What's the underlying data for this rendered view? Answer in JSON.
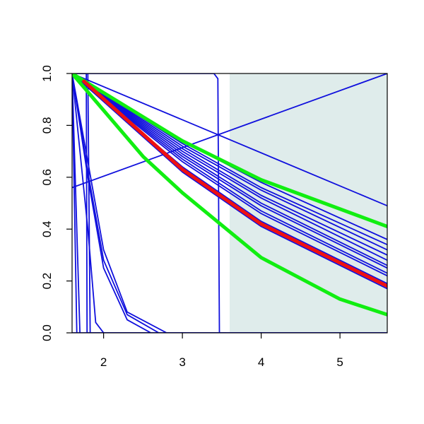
{
  "chart_data": {
    "type": "line",
    "title": "",
    "xlabel": "",
    "ylabel": "",
    "xlim": [
      1.6,
      5.6
    ],
    "ylim": [
      0.0,
      1.0
    ],
    "x_ticks": [
      2,
      3,
      4,
      5
    ],
    "x_tick_labels": [
      "2",
      "3",
      "4",
      "5"
    ],
    "y_ticks": [
      0.0,
      0.2,
      0.4,
      0.6,
      0.8,
      1.0
    ],
    "y_tick_labels": [
      "0.0",
      "0.2",
      "0.4",
      "0.6",
      "0.8",
      "1.0"
    ],
    "grid": false,
    "legend": "none",
    "shaded_region": {
      "x_from": 3.6,
      "x_to": 5.6,
      "color": "#dfeceb"
    },
    "colors": {
      "blue": "#1010dd",
      "green": "#11ee11",
      "red": "#ee1111"
    },
    "series": [
      {
        "color": "blue",
        "width": "thin",
        "points": [
          [
            1.6,
            0.56
          ],
          [
            5.6,
            1.0
          ]
        ]
      },
      {
        "color": "blue",
        "width": "thin",
        "points": [
          [
            1.6,
            1.0
          ],
          [
            5.6,
            0.49
          ]
        ]
      },
      {
        "color": "blue",
        "width": "thin",
        "points": [
          [
            1.6,
            1.0
          ],
          [
            3.0,
            0.74
          ],
          [
            4.0,
            0.58
          ],
          [
            5.6,
            0.36
          ]
        ]
      },
      {
        "color": "blue",
        "width": "thin",
        "points": [
          [
            1.6,
            1.0
          ],
          [
            3.0,
            0.73
          ],
          [
            4.0,
            0.56
          ],
          [
            5.6,
            0.34
          ]
        ]
      },
      {
        "color": "blue",
        "width": "thin",
        "points": [
          [
            1.6,
            1.0
          ],
          [
            3.0,
            0.72
          ],
          [
            4.0,
            0.55
          ],
          [
            5.6,
            0.32
          ]
        ]
      },
      {
        "color": "blue",
        "width": "thin",
        "points": [
          [
            1.6,
            1.0
          ],
          [
            3.0,
            0.71
          ],
          [
            4.0,
            0.53
          ],
          [
            5.6,
            0.3
          ]
        ]
      },
      {
        "color": "blue",
        "width": "thin",
        "points": [
          [
            1.6,
            1.0
          ],
          [
            3.0,
            0.7
          ],
          [
            4.0,
            0.52
          ],
          [
            5.6,
            0.28
          ]
        ]
      },
      {
        "color": "blue",
        "width": "thin",
        "points": [
          [
            1.6,
            1.0
          ],
          [
            3.0,
            0.69
          ],
          [
            4.0,
            0.5
          ],
          [
            5.6,
            0.26
          ]
        ]
      },
      {
        "color": "blue",
        "width": "thin",
        "points": [
          [
            1.6,
            1.0
          ],
          [
            3.0,
            0.68
          ],
          [
            4.0,
            0.49
          ],
          [
            5.6,
            0.25
          ]
        ]
      },
      {
        "color": "blue",
        "width": "thin",
        "points": [
          [
            1.6,
            1.0
          ],
          [
            3.0,
            0.67
          ],
          [
            4.0,
            0.47
          ],
          [
            5.6,
            0.23
          ]
        ]
      },
      {
        "color": "blue",
        "width": "thin",
        "points": [
          [
            1.6,
            1.0
          ],
          [
            3.0,
            0.66
          ],
          [
            4.0,
            0.46
          ],
          [
            5.6,
            0.22
          ]
        ]
      },
      {
        "color": "blue",
        "width": "thin",
        "points": [
          [
            1.6,
            1.0
          ],
          [
            3.0,
            0.64
          ],
          [
            4.0,
            0.43
          ],
          [
            5.6,
            0.19
          ]
        ]
      },
      {
        "color": "blue",
        "width": "thin",
        "points": [
          [
            1.6,
            1.0
          ],
          [
            3.0,
            0.63
          ],
          [
            4.0,
            0.42
          ],
          [
            5.6,
            0.18
          ]
        ]
      },
      {
        "color": "blue",
        "width": "thin",
        "points": [
          [
            1.6,
            1.0
          ],
          [
            3.0,
            0.62
          ],
          [
            4.0,
            0.41
          ],
          [
            5.6,
            0.17
          ]
        ]
      },
      {
        "color": "blue",
        "width": "thin",
        "points": [
          [
            1.6,
            1.0
          ],
          [
            1.7,
            0.0
          ]
        ]
      },
      {
        "color": "blue",
        "width": "thin",
        "points": [
          [
            1.6,
            1.0
          ],
          [
            1.66,
            0.0
          ]
        ]
      },
      {
        "color": "blue",
        "width": "thin",
        "points": [
          [
            1.6,
            1.0
          ],
          [
            1.8,
            0.4
          ],
          [
            1.9,
            0.04
          ],
          [
            2.0,
            0.0
          ]
        ]
      },
      {
        "color": "blue",
        "width": "thin",
        "points": [
          [
            1.6,
            1.0
          ],
          [
            1.8,
            0.6
          ],
          [
            2.0,
            0.25
          ],
          [
            2.3,
            0.05
          ],
          [
            2.6,
            0.0
          ]
        ]
      },
      {
        "color": "blue",
        "width": "thin",
        "points": [
          [
            1.6,
            1.0
          ],
          [
            1.8,
            0.62
          ],
          [
            2.0,
            0.28
          ],
          [
            2.3,
            0.07
          ],
          [
            2.7,
            0.0
          ]
        ]
      },
      {
        "color": "blue",
        "width": "thin",
        "points": [
          [
            1.6,
            1.0
          ],
          [
            1.8,
            0.66
          ],
          [
            2.0,
            0.32
          ],
          [
            2.3,
            0.08
          ],
          [
            2.8,
            0.0
          ]
        ]
      },
      {
        "color": "blue",
        "width": "thin",
        "points": [
          [
            1.6,
            1.0
          ],
          [
            1.78,
            1.0
          ],
          [
            1.79,
            0.0
          ],
          [
            5.6,
            0.0
          ]
        ]
      },
      {
        "color": "blue",
        "width": "thin",
        "points": [
          [
            1.6,
            1.0
          ],
          [
            1.8,
            1.0
          ],
          [
            1.83,
            0.0
          ]
        ]
      },
      {
        "color": "blue",
        "width": "thin",
        "points": [
          [
            1.6,
            1.0
          ],
          [
            3.4,
            1.0
          ],
          [
            3.45,
            0.98
          ],
          [
            3.47,
            0.0
          ],
          [
            3.55,
            0.0
          ]
        ]
      },
      {
        "color": "blue",
        "width": "thin",
        "points": [
          [
            1.6,
            0.0
          ],
          [
            5.6,
            0.0
          ]
        ]
      },
      {
        "color": "green",
        "width": "thick",
        "points": [
          [
            1.6,
            1.0
          ],
          [
            3.0,
            0.74
          ],
          [
            4.0,
            0.59
          ],
          [
            5.6,
            0.41
          ]
        ]
      },
      {
        "color": "green",
        "width": "thick",
        "points": [
          [
            1.6,
            1.0
          ],
          [
            2.5,
            0.68
          ],
          [
            3.0,
            0.54
          ],
          [
            4.0,
            0.29
          ],
          [
            5.0,
            0.13
          ],
          [
            5.6,
            0.07
          ]
        ]
      },
      {
        "color": "red",
        "width": "thick",
        "points": [
          [
            1.75,
            0.97
          ],
          [
            3.0,
            0.63
          ],
          [
            4.0,
            0.42
          ],
          [
            5.6,
            0.18
          ]
        ]
      }
    ]
  }
}
